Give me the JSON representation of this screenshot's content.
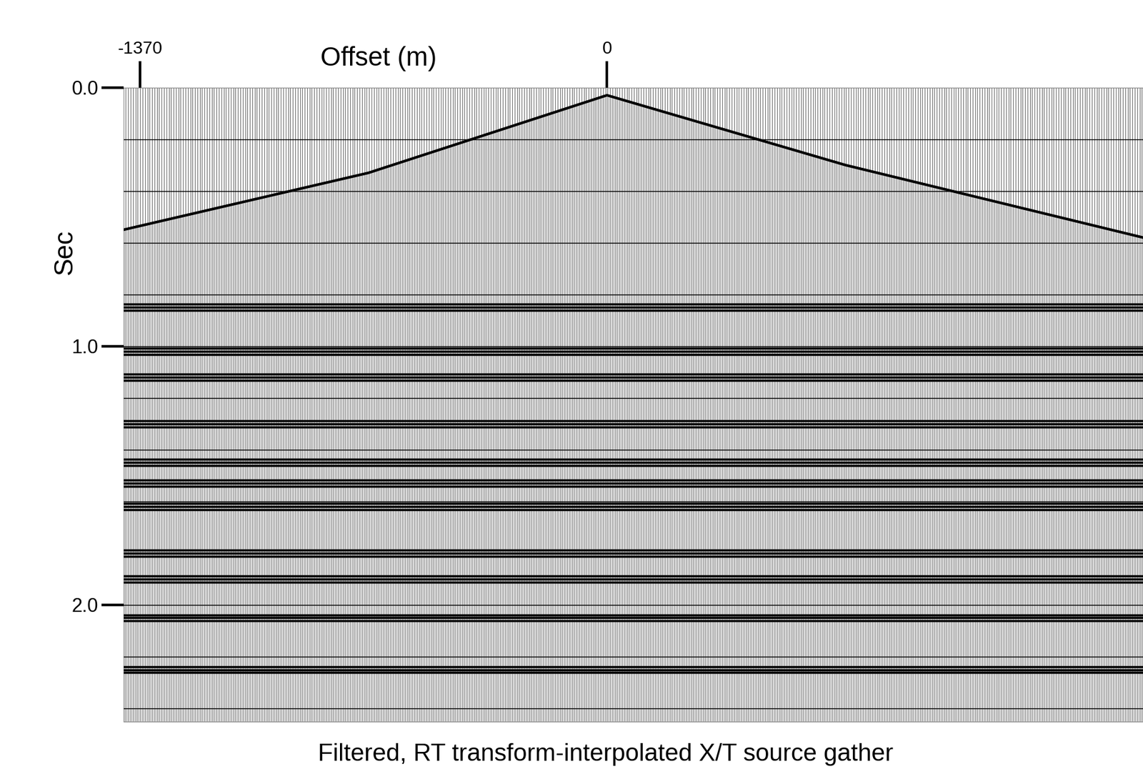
{
  "chart_data": {
    "type": "seismic",
    "xlabel": "Offset (m)",
    "ylabel": "Sec",
    "caption": "Filtered, RT transform-interpolated X/T source gather",
    "xlim": [
      -1419,
      1573
    ],
    "ylim": [
      2.45,
      0.0
    ],
    "xticks": [
      -1370,
      0
    ],
    "yticks": [
      {
        "value": 0.0,
        "label": "0.0"
      },
      {
        "value": 1.0,
        "label": "1.0"
      },
      {
        "value": 2.0,
        "label": "2.0"
      }
    ],
    "timing_lines": [
      0.2,
      0.4,
      0.6,
      0.8,
      1.0,
      1.2,
      1.4,
      1.6,
      1.8,
      2.0,
      2.2,
      2.4
    ],
    "first_break": {
      "x": [
        -1419,
        -700,
        0,
        700,
        1573
      ],
      "values": [
        0.55,
        0.33,
        0.03,
        0.3,
        0.58
      ]
    },
    "reflectors": [
      0.85,
      1.02,
      1.12,
      1.3,
      1.45,
      1.53,
      1.62,
      1.8,
      1.9,
      2.05,
      2.25
    ],
    "color": "#000000"
  }
}
